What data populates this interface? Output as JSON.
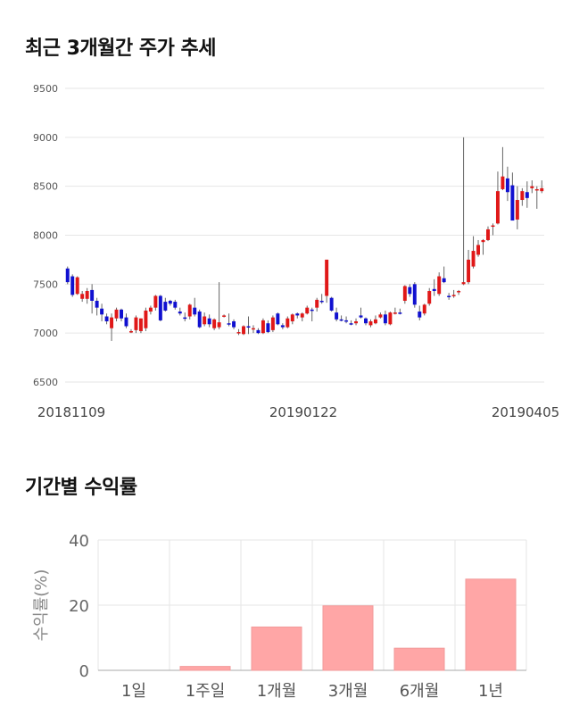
{
  "chart_data": [
    {
      "type": "candlestick",
      "title": "최근 3개월간 주가 추세",
      "ylim": [
        6500,
        9500
      ],
      "y_ticks": [
        "9500",
        "9000",
        "8500",
        "8000",
        "7500",
        "7000",
        "6500"
      ],
      "x_ticks": [
        "20181109",
        "20190122",
        "20190405"
      ],
      "grid": true,
      "colors": {
        "up": "#e01818",
        "down": "#1010d0",
        "wick": "#666666",
        "grid": "#e6e6e6"
      },
      "ohlc": [
        [
          7660,
          7680,
          7500,
          7520
        ],
        [
          7580,
          7600,
          7370,
          7390
        ],
        [
          7400,
          7580,
          7390,
          7570
        ],
        [
          7350,
          7430,
          7320,
          7400
        ],
        [
          7350,
          7460,
          7300,
          7430
        ],
        [
          7440,
          7500,
          7200,
          7330
        ],
        [
          7330,
          7360,
          7180,
          7260
        ],
        [
          7250,
          7300,
          7120,
          7190
        ],
        [
          7170,
          7200,
          7090,
          7120
        ],
        [
          7050,
          7200,
          6920,
          7160
        ],
        [
          7150,
          7260,
          7120,
          7240
        ],
        [
          7240,
          7250,
          7120,
          7150
        ],
        [
          7160,
          7200,
          7050,
          7070
        ],
        [
          7010,
          7040,
          7000,
          7020
        ],
        [
          7030,
          7180,
          7000,
          7160
        ],
        [
          7020,
          7150,
          7000,
          7150
        ],
        [
          7050,
          7260,
          7020,
          7230
        ],
        [
          7220,
          7280,
          7190,
          7260
        ],
        [
          7260,
          7390,
          7230,
          7380
        ],
        [
          7380,
          7390,
          7120,
          7130
        ],
        [
          7320,
          7360,
          7220,
          7230
        ],
        [
          7330,
          7340,
          7280,
          7300
        ],
        [
          7320,
          7340,
          7240,
          7260
        ],
        [
          7220,
          7260,
          7180,
          7200
        ],
        [
          7160,
          7210,
          7120,
          7150
        ],
        [
          7170,
          7300,
          7140,
          7290
        ],
        [
          7260,
          7360,
          7170,
          7190
        ],
        [
          7220,
          7240,
          7050,
          7060
        ],
        [
          7090,
          7210,
          7070,
          7170
        ],
        [
          7150,
          7190,
          7060,
          7090
        ],
        [
          7050,
          7150,
          7030,
          7140
        ],
        [
          7060,
          7520,
          7040,
          7110
        ],
        [
          7170,
          7190,
          7160,
          7180
        ],
        [
          7100,
          7200,
          7070,
          7090
        ],
        [
          7120,
          7140,
          7040,
          7060
        ],
        [
          7000,
          7040,
          6980,
          7010
        ],
        [
          6990,
          7080,
          6980,
          7070
        ],
        [
          7070,
          7170,
          6990,
          7060
        ],
        [
          7050,
          7080,
          7000,
          7050
        ],
        [
          7030,
          7050,
          6990,
          7000
        ],
        [
          7000,
          7150,
          6990,
          7130
        ],
        [
          7100,
          7130,
          7000,
          7010
        ],
        [
          7030,
          7180,
          7010,
          7160
        ],
        [
          7200,
          7210,
          7080,
          7090
        ],
        [
          7080,
          7100,
          7040,
          7060
        ],
        [
          7060,
          7170,
          7050,
          7150
        ],
        [
          7120,
          7200,
          7090,
          7190
        ],
        [
          7200,
          7210,
          7150,
          7180
        ],
        [
          7160,
          7210,
          7120,
          7200
        ],
        [
          7200,
          7280,
          7190,
          7260
        ],
        [
          7240,
          7260,
          7120,
          7230
        ],
        [
          7260,
          7360,
          7220,
          7340
        ],
        [
          7330,
          7400,
          7300,
          7320
        ],
        [
          7380,
          7750,
          7310,
          7750
        ],
        [
          7360,
          7370,
          7220,
          7230
        ],
        [
          7210,
          7260,
          7120,
          7140
        ],
        [
          7140,
          7180,
          7120,
          7130
        ],
        [
          7130,
          7170,
          7100,
          7120
        ],
        [
          7100,
          7130,
          7080,
          7090
        ],
        [
          7100,
          7150,
          7080,
          7120
        ],
        [
          7180,
          7260,
          7150,
          7160
        ],
        [
          7150,
          7160,
          7080,
          7100
        ],
        [
          7080,
          7140,
          7060,
          7120
        ],
        [
          7100,
          7180,
          7090,
          7140
        ],
        [
          7160,
          7210,
          7150,
          7190
        ],
        [
          7190,
          7230,
          7080,
          7100
        ],
        [
          7090,
          7220,
          7080,
          7210
        ],
        [
          7200,
          7260,
          7190,
          7210
        ],
        [
          7210,
          7250,
          7190,
          7200
        ],
        [
          7330,
          7490,
          7300,
          7480
        ],
        [
          7470,
          7500,
          7370,
          7400
        ],
        [
          7500,
          7520,
          7260,
          7290
        ],
        [
          7220,
          7280,
          7130,
          7160
        ],
        [
          7200,
          7300,
          7180,
          7290
        ],
        [
          7300,
          7460,
          7280,
          7430
        ],
        [
          7450,
          7550,
          7380,
          7430
        ],
        [
          7400,
          7620,
          7380,
          7580
        ],
        [
          7560,
          7680,
          7510,
          7520
        ],
        [
          7380,
          7410,
          7340,
          7370
        ],
        [
          7390,
          7440,
          7360,
          7390
        ],
        [
          7420,
          7440,
          7390,
          7430
        ],
        [
          7500,
          9000,
          7490,
          7520
        ],
        [
          7520,
          7850,
          7500,
          7750
        ],
        [
          7680,
          7990,
          7660,
          7840
        ],
        [
          7800,
          7950,
          7780,
          7900
        ],
        [
          7930,
          7960,
          7800,
          7950
        ],
        [
          7950,
          8090,
          7940,
          8060
        ],
        [
          8090,
          8120,
          8000,
          8100
        ],
        [
          8120,
          8650,
          8110,
          8450
        ],
        [
          8470,
          8900,
          8460,
          8600
        ],
        [
          8580,
          8700,
          8350,
          8440
        ],
        [
          8510,
          8640,
          8160,
          8150
        ],
        [
          8160,
          8500,
          8060,
          8360
        ],
        [
          8360,
          8480,
          8300,
          8450
        ],
        [
          8440,
          8550,
          8280,
          8380
        ],
        [
          8480,
          8560,
          8430,
          8500
        ],
        [
          8460,
          8500,
          8270,
          8470
        ],
        [
          8450,
          8560,
          8430,
          8480
        ]
      ]
    },
    {
      "type": "bar",
      "title": "기간별 수익률",
      "ylabel": "수익률(%)",
      "ylim": [
        0,
        40
      ],
      "y_ticks": [
        "40",
        "20",
        "0"
      ],
      "categories": [
        "1일",
        "1주일",
        "1개월",
        "3개월",
        "6개월",
        "1년"
      ],
      "values": [
        0,
        1.2,
        13.3,
        19.8,
        6.8,
        28.0
      ],
      "colors": {
        "bar": "#ffa6a6",
        "bar_edge": "#f29a9a",
        "grid": "#e6e6e6",
        "axis": "#aaaaaa"
      }
    }
  ]
}
